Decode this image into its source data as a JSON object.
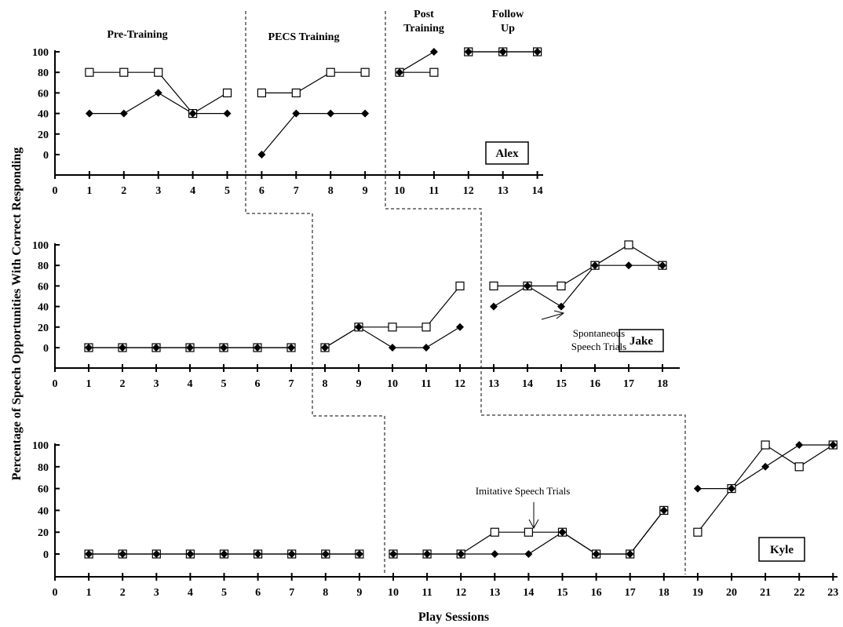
{
  "chart_data": [
    {
      "type": "line",
      "participant": "Alex",
      "x": [
        1,
        2,
        3,
        4,
        5,
        6,
        7,
        8,
        9,
        10,
        11,
        12,
        13,
        14
      ],
      "x_ticks": [
        0,
        1,
        2,
        3,
        4,
        5,
        6,
        7,
        8,
        9,
        10,
        11,
        12,
        13,
        14
      ],
      "y_ticks": [
        0,
        20,
        40,
        60,
        80,
        100
      ],
      "ylim": [
        -20,
        100
      ],
      "phases": [
        "Pre-Training",
        "PECS Training",
        "Post\nTraining",
        "Follow\nUp"
      ],
      "phase_breaks_after": [
        5,
        9,
        11
      ],
      "series": [
        {
          "marker": "open-square",
          "segments": [
            {
              "x": [
                1,
                2,
                3,
                4,
                5
              ],
              "y": [
                80,
                80,
                80,
                40,
                60
              ]
            },
            {
              "x": [
                6,
                7,
                8,
                9
              ],
              "y": [
                60,
                60,
                80,
                80
              ]
            },
            {
              "x": [
                10,
                11
              ],
              "y": [
                80,
                80
              ]
            },
            {
              "x": [
                12,
                13,
                14
              ],
              "y": [
                100,
                100,
                100
              ]
            }
          ]
        },
        {
          "marker": "filled-diamond",
          "segments": [
            {
              "x": [
                1,
                2,
                3,
                4,
                5
              ],
              "y": [
                40,
                40,
                60,
                40,
                40
              ]
            },
            {
              "x": [
                6,
                7,
                8,
                9
              ],
              "y": [
                0,
                40,
                40,
                40
              ]
            },
            {
              "x": [
                10,
                11
              ],
              "y": [
                80,
                100
              ]
            },
            {
              "x": [
                12,
                13,
                14
              ],
              "y": [
                100,
                100,
                100
              ]
            }
          ]
        }
      ]
    },
    {
      "type": "line",
      "participant": "Jake",
      "x_ticks": [
        0,
        1,
        2,
        3,
        4,
        5,
        6,
        7,
        8,
        9,
        10,
        11,
        12,
        13,
        14,
        15,
        16,
        17,
        18
      ],
      "y_ticks": [
        0,
        20,
        40,
        60,
        80,
        100
      ],
      "ylim": [
        -20,
        100
      ],
      "phase_breaks_after": [
        7,
        12
      ],
      "annotation": "Spontaneous\nSpeech Trials",
      "series": [
        {
          "marker": "open-square",
          "segments": [
            {
              "x": [
                1,
                2,
                3,
                4,
                5,
                6,
                7
              ],
              "y": [
                0,
                0,
                0,
                0,
                0,
                0,
                0
              ]
            },
            {
              "x": [
                8,
                9,
                10,
                11,
                12
              ],
              "y": [
                0,
                20,
                20,
                20,
                60
              ]
            },
            {
              "x": [
                13,
                14,
                15,
                16,
                17,
                18
              ],
              "y": [
                60,
                60,
                60,
                80,
                100,
                80
              ]
            }
          ]
        },
        {
          "marker": "filled-diamond",
          "segments": [
            {
              "x": [
                1,
                2,
                3,
                4,
                5,
                6,
                7
              ],
              "y": [
                0,
                0,
                0,
                0,
                0,
                0,
                0
              ]
            },
            {
              "x": [
                8,
                9,
                10,
                11,
                12
              ],
              "y": [
                0,
                20,
                0,
                0,
                20
              ]
            },
            {
              "x": [
                13,
                14,
                15,
                16,
                17,
                18
              ],
              "y": [
                40,
                60,
                40,
                80,
                80,
                80
              ]
            }
          ]
        }
      ]
    },
    {
      "type": "line",
      "participant": "Kyle",
      "x_ticks": [
        0,
        1,
        2,
        3,
        4,
        5,
        6,
        7,
        8,
        9,
        10,
        11,
        12,
        13,
        14,
        15,
        16,
        17,
        18,
        19,
        20,
        21,
        22,
        23
      ],
      "y_ticks": [
        0,
        20,
        40,
        60,
        80,
        100
      ],
      "ylim": [
        -20,
        100
      ],
      "phase_breaks_after": [
        9,
        18
      ],
      "annotation": "Imitative Speech Trials",
      "series": [
        {
          "marker": "open-square",
          "segments": [
            {
              "x": [
                1,
                2,
                3,
                4,
                5,
                6,
                7,
                8,
                9
              ],
              "y": [
                0,
                0,
                0,
                0,
                0,
                0,
                0,
                0,
                0
              ]
            },
            {
              "x": [
                10,
                11,
                12,
                13,
                14,
                15,
                16,
                17,
                18
              ],
              "y": [
                0,
                0,
                0,
                20,
                20,
                20,
                0,
                0,
                40
              ]
            },
            {
              "x": [
                19,
                20,
                21,
                22,
                23
              ],
              "y": [
                20,
                60,
                100,
                80,
                100
              ]
            }
          ]
        },
        {
          "marker": "filled-diamond",
          "segments": [
            {
              "x": [
                1,
                2,
                3,
                4,
                5,
                6,
                7,
                8,
                9
              ],
              "y": [
                0,
                0,
                0,
                0,
                0,
                0,
                0,
                0,
                0
              ]
            },
            {
              "x": [
                10,
                11,
                12,
                13,
                14,
                15,
                16,
                17,
                18
              ],
              "y": [
                0,
                0,
                0,
                0,
                0,
                20,
                0,
                0,
                40
              ]
            },
            {
              "x": [
                19,
                20,
                21,
                22,
                23
              ],
              "y": [
                60,
                60,
                80,
                100,
                100
              ]
            }
          ]
        }
      ]
    }
  ],
  "ylabel": "Percentage of Speech Opportunities With Correct Responding",
  "xlabel": "Play Sessions"
}
